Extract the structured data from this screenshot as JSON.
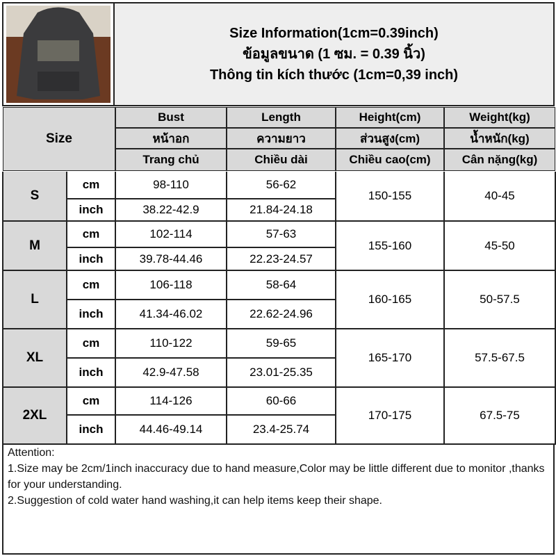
{
  "header": {
    "title_lines": [
      "Size Information(1cm=0.39inch)",
      "ข้อมูลขนาด (1 ซม. = 0.39 นิ้ว)",
      "Thông tin kích thước (1cm=0,39 inch)"
    ]
  },
  "table": {
    "size_label": "Size",
    "columns": [
      [
        "Bust",
        "หน้าอก",
        "Trang chủ"
      ],
      [
        "Length",
        "ความยาว",
        "Chiều dài"
      ],
      [
        "Height(cm)",
        "ส่วนสูง(cm)",
        "Chiều cao(cm)"
      ],
      [
        "Weight(kg)",
        "น้ำหนัก(kg)",
        "Cân nặng(kg)"
      ]
    ],
    "unit_cm": "cm",
    "unit_inch": "inch",
    "rows": [
      {
        "size": "S",
        "bust_cm": "98-110",
        "length_cm": "56-62",
        "bust_inch": "38.22-42.9",
        "length_inch": "21.84-24.18",
        "height": "150-155",
        "weight": "40-45"
      },
      {
        "size": "M",
        "bust_cm": "102-114",
        "length_cm": "57-63",
        "bust_inch": "39.78-44.46",
        "length_inch": "22.23-24.57",
        "height": "155-160",
        "weight": "45-50"
      },
      {
        "size": "L",
        "bust_cm": "106-118",
        "length_cm": "58-64",
        "bust_inch": "41.34-46.02",
        "length_inch": "22.62-24.96",
        "height": "160-165",
        "weight": "50-57.5"
      },
      {
        "size": "XL",
        "bust_cm": "110-122",
        "length_cm": "59-65",
        "bust_inch": "42.9-47.58",
        "length_inch": "23.01-25.35",
        "height": "165-170",
        "weight": "57.5-67.5"
      },
      {
        "size": "2XL",
        "bust_cm": "114-126",
        "length_cm": "60-66",
        "bust_inch": "44.46-49.14",
        "length_inch": "23.4-25.74",
        "height": "170-175",
        "weight": "67.5-75"
      }
    ]
  },
  "notes": [
    "Attention:",
    "1.Size may be 2cm/1inch inaccuracy due to hand measure,Color may be little different due to monitor ,thanks for your understanding.",
    "2.Suggestion of cold water hand washing,it can help items keep their shape."
  ]
}
